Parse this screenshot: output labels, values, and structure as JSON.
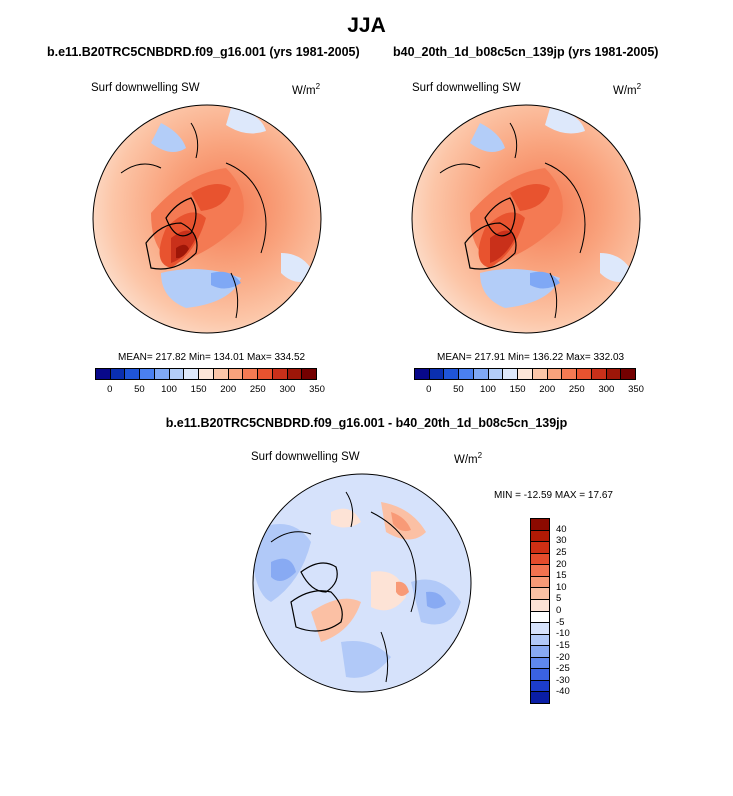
{
  "title": "JJA",
  "panels": [
    {
      "id": "left",
      "title": "b.e11.B20TRC5CNBDRD.f09_g16.001 (yrs 1981-2005)",
      "variable": "Surf downwelling SW",
      "units": "W/m",
      "units_exp": "2",
      "stats": "MEAN= 217.82  Min= 134.01  Max= 334.52",
      "mean": 217.82,
      "min": 134.01,
      "max": 334.52
    },
    {
      "id": "right",
      "title": "b40_20th_1d_b08c5cn_139jp (yrs 1981-2005)",
      "variable": "Surf downwelling SW",
      "units": "W/m",
      "units_exp": "2",
      "stats": "MEAN= 217.91  Min= 136.22  Max= 332.03",
      "mean": 217.91,
      "min": 136.22,
      "max": 332.03
    }
  ],
  "colorbar": {
    "labels": [
      "0",
      "50",
      "100",
      "150",
      "200",
      "250",
      "300",
      "350"
    ],
    "colors": [
      "#08088a",
      "#0a2fb0",
      "#1f55d8",
      "#4a80f0",
      "#7fa8f5",
      "#b3cdf8",
      "#dde8fb",
      "#fde6d8",
      "#fcc6a8",
      "#f9a27c",
      "#f47a53",
      "#e8532f",
      "#c9301a",
      "#9e1608",
      "#730000"
    ]
  },
  "difference": {
    "title": "b.e11.B20TRC5CNBDRD.f09_g16.001 - b40_20th_1d_b08c5cn_139jp",
    "variable": "Surf downwelling SW",
    "units": "W/m",
    "units_exp": "2",
    "stats": "MIN = -12.59 MAX =  17.67",
    "min": -12.59,
    "max": 17.67,
    "colorbar_labels": [
      "40",
      "30",
      "25",
      "20",
      "15",
      "10",
      "5",
      "0",
      "-5",
      "-10",
      "-15",
      "-20",
      "-25",
      "-30",
      "-40"
    ],
    "colorbar_colors": [
      "#8c0a00",
      "#b01a05",
      "#cf2f14",
      "#e54c2c",
      "#f27350",
      "#f89a77",
      "#fbc0a4",
      "#fde3d6",
      "#ffffff",
      "#d6e2fb",
      "#b1c9f8",
      "#88aaf3",
      "#5f88ee",
      "#3a62e3",
      "#1c3dcc",
      "#0a1ea6"
    ]
  }
}
